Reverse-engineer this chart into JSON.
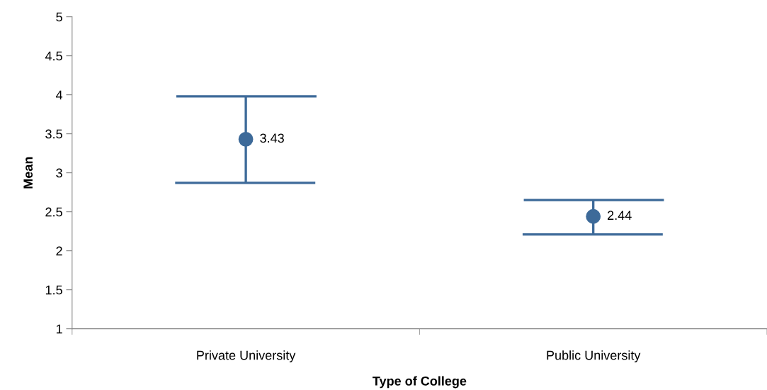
{
  "chart_data": {
    "type": "scatter",
    "xlabel": "Type of College",
    "ylabel": "Mean",
    "categories": [
      "Private University",
      "Public University"
    ],
    "series": [
      {
        "color": "#3d6a99",
        "values": [
          3.43,
          2.44
        ],
        "errors": [
          [
            2.87,
            3.98
          ],
          [
            2.21,
            2.65
          ]
        ]
      }
    ],
    "ylim": [
      1,
      5
    ],
    "yticks": [
      1,
      1.5,
      2,
      2.5,
      3,
      3.5,
      4,
      4.5,
      5
    ],
    "data_labels": true,
    "marker": "circle",
    "grid": false,
    "legend": false
  }
}
